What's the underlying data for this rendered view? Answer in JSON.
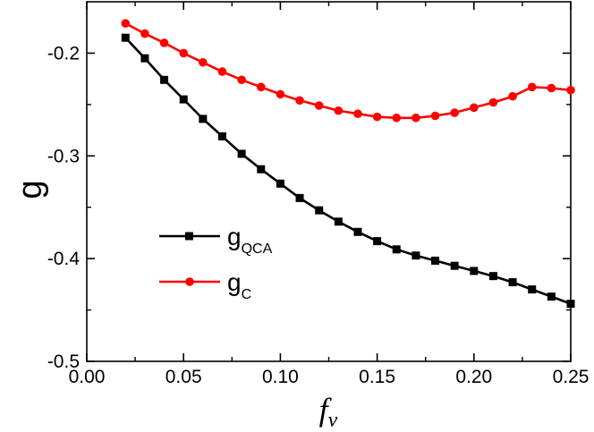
{
  "chart_data": {
    "type": "line",
    "xlabel": "f",
    "xlabel_sub": "v",
    "ylabel": "g",
    "xlim": [
      0.0,
      0.25
    ],
    "ylim": [
      -0.5,
      -0.15
    ],
    "x_ticks": [
      "0.00",
      "0.05",
      "0.10",
      "0.15",
      "0.20",
      "0.25"
    ],
    "y_ticks": [
      "-0.2",
      "-0.3",
      "-0.4",
      "-0.5"
    ],
    "grid": false,
    "legend_position": "lower-left",
    "series": [
      {
        "name": "g",
        "name_sub": "QCA",
        "color": "#000000",
        "marker": "square",
        "x": [
          0.02,
          0.03,
          0.04,
          0.05,
          0.06,
          0.07,
          0.08,
          0.09,
          0.1,
          0.11,
          0.12,
          0.13,
          0.14,
          0.15,
          0.16,
          0.17,
          0.18,
          0.19,
          0.2,
          0.21,
          0.22,
          0.23,
          0.24,
          0.25
        ],
        "values": [
          -0.185,
          -0.205,
          -0.226,
          -0.245,
          -0.264,
          -0.281,
          -0.298,
          -0.313,
          -0.327,
          -0.341,
          -0.353,
          -0.364,
          -0.374,
          -0.383,
          -0.391,
          -0.397,
          -0.402,
          -0.407,
          -0.412,
          -0.417,
          -0.423,
          -0.43,
          -0.437,
          -0.444
        ]
      },
      {
        "name": "g",
        "name_sub": "C",
        "color": "#ff0000",
        "marker": "circle",
        "x": [
          0.02,
          0.03,
          0.04,
          0.05,
          0.06,
          0.07,
          0.08,
          0.09,
          0.1,
          0.11,
          0.12,
          0.13,
          0.14,
          0.15,
          0.16,
          0.17,
          0.18,
          0.19,
          0.2,
          0.21,
          0.22,
          0.23,
          0.24,
          0.25
        ],
        "values": [
          -0.171,
          -0.181,
          -0.19,
          -0.2,
          -0.209,
          -0.218,
          -0.226,
          -0.233,
          -0.24,
          -0.246,
          -0.251,
          -0.256,
          -0.259,
          -0.262,
          -0.263,
          -0.263,
          -0.261,
          -0.258,
          -0.253,
          -0.248,
          -0.242,
          -0.233,
          -0.234,
          -0.236
        ]
      }
    ]
  }
}
